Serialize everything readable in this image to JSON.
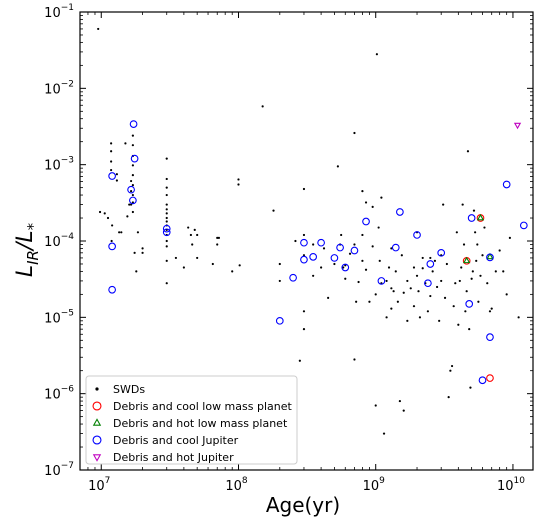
{
  "chart_data": {
    "type": "scatter",
    "title": "",
    "xlabel": "Age(yr)",
    "ylabel_main": "L",
    "ylabel_sub": "IR",
    "ylabel_slash": "/L",
    "ylabel_star": "*",
    "x_scale": "log",
    "y_scale": "log",
    "xlim": [
      7000000,
      14000000000
    ],
    "ylim": [
      1e-07,
      0.1
    ],
    "x_ticks": [
      {
        "value": 10000000,
        "base": "10",
        "exp": "7"
      },
      {
        "value": 100000000,
        "base": "10",
        "exp": "8"
      },
      {
        "value": 1000000000,
        "base": "10",
        "exp": "9"
      },
      {
        "value": 10000000000,
        "base": "10",
        "exp": "10"
      }
    ],
    "y_ticks": [
      {
        "value": 1e-07,
        "base": "10",
        "exp": "−7"
      },
      {
        "value": 1e-06,
        "base": "10",
        "exp": "−6"
      },
      {
        "value": 1e-05,
        "base": "10",
        "exp": "−5"
      },
      {
        "value": 0.0001,
        "base": "10",
        "exp": "−4"
      },
      {
        "value": 0.001,
        "base": "10",
        "exp": "−3"
      },
      {
        "value": 0.01,
        "base": "10",
        "exp": "−2"
      },
      {
        "value": 0.1,
        "base": "10",
        "exp": "−1"
      }
    ],
    "grid": false,
    "legend_position": "bottom-left",
    "series": [
      {
        "name": "SWDs",
        "marker": "dot",
        "color": "#000000",
        "points": [
          [
            9500000.0,
            0.06
          ],
          [
            9800000.0,
            0.00024
          ],
          [
            10600000.0,
            0.00023
          ],
          [
            11200000.0,
            0.0002
          ],
          [
            11800000.0,
            0.0019
          ],
          [
            11800000.0,
            0.0015
          ],
          [
            11800000.0,
            0.0011
          ],
          [
            11800000.0,
            0.00085
          ],
          [
            11900000.0,
            0.0001
          ],
          [
            12000000.0,
            0.00016
          ],
          [
            13000000.0,
            0.00075
          ],
          [
            13000000.0,
            0.00062
          ],
          [
            13500000.0,
            0.00013
          ],
          [
            14000000.0,
            0.00013
          ],
          [
            15000000.0,
            0.0019
          ],
          [
            15500000.0,
            0.00021
          ],
          [
            16000000.0,
            0.0003
          ],
          [
            16500000.0,
            0.00061
          ],
          [
            16500000.0,
            0.00045
          ],
          [
            16500000.0,
            0.0003
          ],
          [
            17000000.0,
            0.0024
          ],
          [
            17000000.0,
            0.0018
          ],
          [
            17000000.0,
            0.0013
          ],
          [
            17000000.0,
            0.00098
          ],
          [
            17000000.0,
            0.00073
          ],
          [
            17000000.0,
            0.00054
          ],
          [
            17000000.0,
            0.0004
          ],
          [
            17000000.0,
            0.00032
          ],
          [
            17000000.0,
            0.00024
          ],
          [
            17500000.0,
            7e-05
          ],
          [
            18000000.0,
            4e-05
          ],
          [
            18500000.0,
            0.00013
          ],
          [
            20000000.0,
            8e-05
          ],
          [
            20000000.0,
            7e-05
          ],
          [
            30000000.0,
            0.0012
          ],
          [
            30000000.0,
            0.00065
          ],
          [
            30000000.0,
            0.0005
          ],
          [
            30000000.0,
            0.0004
          ],
          [
            30000000.0,
            0.0003
          ],
          [
            30000000.0,
            0.00026
          ],
          [
            30000000.0,
            0.00023
          ],
          [
            30000000.0,
            0.0002
          ],
          [
            30000000.0,
            0.00018
          ],
          [
            30000000.0,
            0.00016
          ],
          [
            30000000.0,
            0.00014
          ],
          [
            30000000.0,
            0.00012
          ],
          [
            30000000.0,
            0.0001
          ],
          [
            30000000.0,
            8.5e-05
          ],
          [
            30000000.0,
            5.5e-05
          ],
          [
            30000000.0,
            2.8e-05
          ],
          [
            35000000.0,
            6e-05
          ],
          [
            40000000.0,
            4.5e-05
          ],
          [
            43000000.0,
            0.00015
          ],
          [
            45000000.0,
            0.00012
          ],
          [
            46000000.0,
            9e-05
          ],
          [
            48000000.0,
            0.00014
          ],
          [
            50000000.0,
            0.00012
          ],
          [
            50000000.0,
            6e-05
          ],
          [
            65000000.0,
            5e-05
          ],
          [
            70000000.0,
            9e-05
          ],
          [
            70000000.0,
            0.00011
          ],
          [
            72000000.0,
            0.00011
          ],
          [
            90000000.0,
            4e-05
          ],
          [
            100000000.0,
            0.00064
          ],
          [
            100000000.0,
            0.00055
          ],
          [
            102000000.0,
            4.8e-05
          ],
          [
            150000000.0,
            0.0058
          ],
          [
            180000000.0,
            0.00025
          ],
          [
            200000000.0,
            5e-05
          ],
          [
            200000000.0,
            3e-05
          ],
          [
            260000000.0,
            0.0001
          ],
          [
            280000000.0,
            2.7e-06
          ],
          [
            300000000.0,
            0.00048
          ],
          [
            300000000.0,
            0.00012
          ],
          [
            300000000.0,
            6.5e-05
          ],
          [
            300000000.0,
            7e-06
          ],
          [
            300000000.0,
            1.2e-05
          ],
          [
            350000000.0,
            9e-05
          ],
          [
            350000000.0,
            3.5e-05
          ],
          [
            400000000.0,
            4.5e-05
          ],
          [
            420000000.0,
            8e-05
          ],
          [
            450000000.0,
            1.8e-05
          ],
          [
            500000000.0,
            5e-05
          ],
          [
            530000000.0,
            0.00095
          ],
          [
            550000000.0,
            9e-05
          ],
          [
            560000000.0,
            0.00012
          ],
          [
            580000000.0,
            4.5e-05
          ],
          [
            600000000.0,
            4.8e-05
          ],
          [
            600000000.0,
            3.2e-05
          ],
          [
            650000000.0,
            6.8e-05
          ],
          [
            700000000.0,
            0.0026
          ],
          [
            700000000.0,
            9e-05
          ],
          [
            700000000.0,
            2.8e-06
          ],
          [
            720000000.0,
            1.6e-05
          ],
          [
            750000000.0,
            2.9e-05
          ],
          [
            800000000.0,
            0.00045
          ],
          [
            800000000.0,
            0.00012
          ],
          [
            800000000.0,
            5.5e-05
          ],
          [
            850000000.0,
            0.00032
          ],
          [
            850000000.0,
            4.2e-05
          ],
          [
            900000000.0,
            1.6e-05
          ],
          [
            950000000.0,
            0.00028
          ],
          [
            950000000.0,
            8.5e-05
          ],
          [
            1000000000.0,
            2e-05
          ],
          [
            1020000000.0,
            0.028
          ],
          [
            1000000000.0,
            7e-07
          ],
          [
            1050000000.0,
            0.00015
          ],
          [
            1070000000.0,
            5.5e-05
          ],
          [
            1100000000.0,
            0.00037
          ],
          [
            1100000000.0,
            2.8e-05
          ],
          [
            1150000000.0,
            3e-07
          ],
          [
            1200000000.0,
            1e-05
          ],
          [
            1200000000.0,
            3e-05
          ],
          [
            1250000000.0,
            4.5e-05
          ],
          [
            1300000000.0,
            8e-05
          ],
          [
            1300000000.0,
            1.3e-05
          ],
          [
            1300000000.0,
            2.4e-05
          ],
          [
            1350000000.0,
            2.2e-05
          ],
          [
            1400000000.0,
            4e-05
          ],
          [
            1450000000.0,
            1.6e-05
          ],
          [
            1500000000.0,
            8e-07
          ],
          [
            1550000000.0,
            6.5e-05
          ],
          [
            1600000000.0,
            2.1e-05
          ],
          [
            1600000000.0,
            6e-07
          ],
          [
            1700000000.0,
            3e-05
          ],
          [
            1700000000.0,
            9e-06
          ],
          [
            1800000000.0,
            2.4e-05
          ],
          [
            1900000000.0,
            4.5e-05
          ],
          [
            1900000000.0,
            1.4e-05
          ],
          [
            2000000000.0,
            0.00013
          ],
          [
            2000000000.0,
            3.5e-05
          ],
          [
            2050000000.0,
            2.2e-05
          ],
          [
            2100000000.0,
            1e-05
          ],
          [
            2200000000.0,
            4.4e-05
          ],
          [
            2200000000.0,
            6e-05
          ],
          [
            2300000000.0,
            2.8e-05
          ],
          [
            2400000000.0,
            1.2e-05
          ],
          [
            2500000000.0,
            6e-05
          ],
          [
            2500000000.0,
            1.9e-05
          ],
          [
            2600000000.0,
            4e-05
          ],
          [
            2700000000.0,
            5.5e-05
          ],
          [
            2800000000.0,
            2.5e-05
          ],
          [
            2900000000.0,
            9e-06
          ],
          [
            3000000000.0,
            3e-05
          ],
          [
            3000000000.0,
            6.5e-05
          ],
          [
            3100000000.0,
            0.0003
          ],
          [
            3200000000.0,
            1.8e-05
          ],
          [
            3300000000.0,
            5e-05
          ],
          [
            3400000000.0,
            9e-07
          ],
          [
            3500000000.0,
            2e-06
          ],
          [
            3600000000.0,
            2.3e-06
          ],
          [
            3700000000.0,
            1.4e-05
          ],
          [
            3800000000.0,
            2.8e-05
          ],
          [
            3900000000.0,
            0.00013
          ],
          [
            4000000000.0,
            8e-06
          ],
          [
            4100000000.0,
            3e-05
          ],
          [
            4200000000.0,
            4.5e-05
          ],
          [
            4300000000.0,
            0.0003
          ],
          [
            4400000000.0,
            9e-05
          ],
          [
            4500000000.0,
            1.2e-05
          ],
          [
            4600000000.0,
            2.2e-05
          ],
          [
            4700000000.0,
            0.0015
          ],
          [
            4800000000.0,
            7e-06
          ],
          [
            4900000000.0,
            1.2e-06
          ],
          [
            5000000000.0,
            3.2e-05
          ],
          [
            5100000000.0,
            4e-05
          ],
          [
            5200000000.0,
            0.00025
          ],
          [
            5300000000.0,
            0.00013
          ],
          [
            5400000000.0,
            5.5e-05
          ],
          [
            5500000000.0,
            9e-05
          ],
          [
            5600000000.0,
            1.6e-05
          ],
          [
            5800000000.0,
            3.5e-05
          ],
          [
            6000000000.0,
            6.5e-05
          ],
          [
            6200000000.0,
            0.00015
          ],
          [
            6500000000.0,
            2.8e-05
          ],
          [
            6800000000.0,
            1.2e-05
          ],
          [
            7000000000.0,
            1.3e-05
          ],
          [
            7500000000.0,
            4e-05
          ],
          [
            8000000000.0,
            7.5e-05
          ],
          [
            8500000000.0,
            4e-05
          ],
          [
            9000000000.0,
            2e-05
          ],
          [
            9500000000.0,
            0.00011
          ],
          [
            11000000000.0,
            1e-05
          ]
        ]
      },
      {
        "name": "Debris and cool low mass planet",
        "marker": "circle",
        "color": "#ff0000",
        "points": [
          [
            4600000000.0,
            5.5e-05
          ],
          [
            5800000000.0,
            0.0002
          ],
          [
            6800000000.0,
            1.6e-06
          ]
        ]
      },
      {
        "name": "Debris and hot low mass planet",
        "marker": "triangle-up",
        "color": "#008000",
        "points": [
          [
            4600000000.0,
            5.5e-05
          ],
          [
            5800000000.0,
            0.0002
          ],
          [
            6800000000.0,
            6.2e-05
          ]
        ]
      },
      {
        "name": "Debris and cool Jupiter",
        "marker": "circle",
        "color": "#0000ff",
        "points": [
          [
            12000000.0,
            0.00071
          ],
          [
            12000000.0,
            8.5e-05
          ],
          [
            12000000.0,
            2.3e-05
          ],
          [
            16500000.0,
            0.00047
          ],
          [
            17000000.0,
            0.00034
          ],
          [
            17200000.0,
            0.0034
          ],
          [
            17500000.0,
            0.0012
          ],
          [
            30000000.0,
            0.00013
          ],
          [
            30000000.0,
            0.000145
          ],
          [
            200000000.0,
            9e-06
          ],
          [
            250000000.0,
            3.3e-05
          ],
          [
            300000000.0,
            9.5e-05
          ],
          [
            300000000.0,
            5.7e-05
          ],
          [
            350000000.0,
            6.2e-05
          ],
          [
            400000000.0,
            9.5e-05
          ],
          [
            500000000.0,
            6e-05
          ],
          [
            550000000.0,
            8.2e-05
          ],
          [
            600000000.0,
            4.5e-05
          ],
          [
            700000000.0,
            7.5e-05
          ],
          [
            850000000.0,
            0.00018
          ],
          [
            1100000000.0,
            3e-05
          ],
          [
            1400000000.0,
            8.2e-05
          ],
          [
            1500000000.0,
            0.00024
          ],
          [
            2000000000.0,
            0.00012
          ],
          [
            2400000000.0,
            2.8e-05
          ],
          [
            2500000000.0,
            5e-05
          ],
          [
            3000000000.0,
            7e-05
          ],
          [
            4800000000.0,
            1.5e-05
          ],
          [
            5000000000.0,
            0.0002
          ],
          [
            6000000000.0,
            1.5e-06
          ],
          [
            6800000000.0,
            5.5e-06
          ],
          [
            6800000000.0,
            6.1e-05
          ],
          [
            9000000000.0,
            0.00055
          ],
          [
            12000000000.0,
            0.00016
          ]
        ]
      },
      {
        "name": "Debris and hot Jupiter",
        "marker": "triangle-down",
        "color": "#c000c0",
        "points": [
          [
            10800000000.0,
            0.0033
          ]
        ]
      }
    ]
  }
}
